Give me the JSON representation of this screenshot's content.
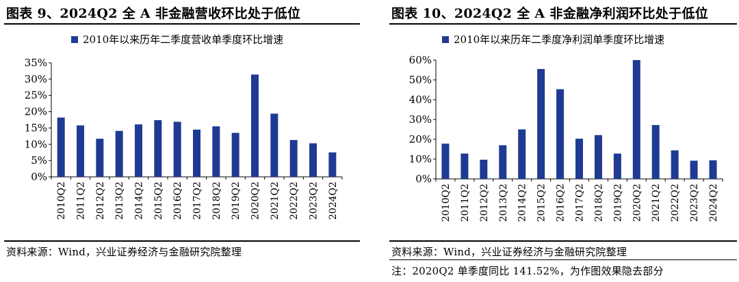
{
  "chart_data": [
    {
      "type": "bar",
      "title": "图表 9、2024Q2 全 A 非金融营收环比处于低位",
      "legend": "2010年以来历年二季度营收单季度环比增速",
      "legend_position": "top",
      "categories": [
        "2010Q2",
        "2011Q2",
        "2012Q2",
        "2013Q2",
        "2014Q2",
        "2015Q2",
        "2016Q2",
        "2017Q2",
        "2018Q2",
        "2019Q2",
        "2020Q2",
        "2021Q2",
        "2022Q2",
        "2023Q2",
        "2024Q2"
      ],
      "values": [
        18.2,
        15.8,
        11.7,
        14.1,
        16.1,
        17.4,
        16.9,
        14.5,
        15.5,
        13.5,
        31.4,
        19.4,
        11.3,
        10.3,
        7.5
      ],
      "ylim": [
        0,
        35
      ],
      "yticks": [
        "0%",
        "5%",
        "10%",
        "15%",
        "20%",
        "25%",
        "30%",
        "35%"
      ],
      "grid": false,
      "bar_color": "#1f3a93",
      "source": "资料来源：Wind，兴业证券经济与金融研究院整理"
    },
    {
      "type": "bar",
      "title": "图表 10、2024Q2 全 A 非金融净利润环比处于低位",
      "legend": "2010年以来历年二季度净利润单季度环比增速",
      "legend_position": "top",
      "categories": [
        "2010Q2",
        "2011Q2",
        "2012Q2",
        "2013Q2",
        "2014Q2",
        "2015Q2",
        "2016Q2",
        "2017Q2",
        "2018Q2",
        "2019Q2",
        "2020Q2",
        "2021Q2",
        "2022Q2",
        "2023Q2",
        "2024Q2"
      ],
      "values": [
        17.8,
        12.8,
        9.7,
        17.0,
        25.0,
        55.5,
        45.3,
        20.3,
        22.1,
        12.8,
        60.0,
        27.2,
        14.4,
        9.2,
        9.4
      ],
      "ylim": [
        0,
        60
      ],
      "yticks": [
        "0%",
        "10%",
        "20%",
        "30%",
        "40%",
        "50%",
        "60%"
      ],
      "grid": false,
      "bar_color": "#1f3a93",
      "source": "资料来源：Wind，兴业证券经济与金融研究院整理",
      "note": "注：2020Q2 单季度同比 141.52%，为作图效果隐去部分"
    }
  ]
}
